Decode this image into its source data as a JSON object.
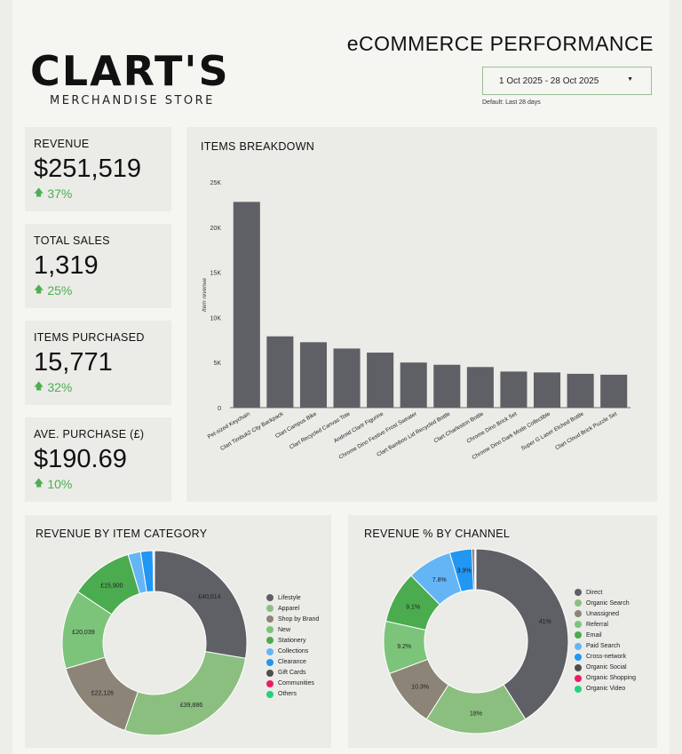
{
  "header": {
    "logo_main": "CLART'S",
    "logo_sub": "MERCHANDISE STORE",
    "title": "eCOMMERCE PERFORMANCE",
    "date_range": "1 Oct 2025 - 28 Oct 2025",
    "date_note": "Default: Last 28 days"
  },
  "kpis": [
    {
      "label": "REVENUE",
      "value": "$251,519",
      "delta": "37%"
    },
    {
      "label": "TOTAL SALES",
      "value": "1,319",
      "delta": "25%"
    },
    {
      "label": "ITEMS PURCHASED",
      "value": "15,771",
      "delta": "32%"
    },
    {
      "label": "AVE. PURCHASE (£)",
      "value": "$190.69",
      "delta": "10%"
    }
  ],
  "colors": {
    "bar": "#5f6065",
    "delta": "#4caf50"
  },
  "chart_data": [
    {
      "type": "bar",
      "title": "ITEMS BREAKDOWN",
      "ylabel": "Item revenue",
      "ylim": [
        0,
        25000
      ],
      "yticks": [
        {
          "value": 0,
          "label": "0"
        },
        {
          "value": 5000,
          "label": "5K"
        },
        {
          "value": 10000,
          "label": "10K"
        },
        {
          "value": 15000,
          "label": "15K"
        },
        {
          "value": 20000,
          "label": "20K"
        },
        {
          "value": 25000,
          "label": "25K"
        }
      ],
      "categories": [
        "Pet-sized Keychain",
        "Clart Timbuk2 City Backpack",
        "Clart Campus Bike",
        "Clart Recycled Canvas Tote",
        "Android Clartr Figurine",
        "Chrome Dino Festive Frost Sweater",
        "Clart Bamboo Lid Recycled Bottle",
        "Clart Charleston Bottle",
        "Chrome Dino Brick Set",
        "Chrome Dino Dark Mode Collectible",
        "Super G Laser Etched Bottle",
        "Clart Cloud Brick Puzzle Set"
      ],
      "values": [
        22800,
        7900,
        7250,
        6550,
        6100,
        5000,
        4750,
        4500,
        4000,
        3900,
        3750,
        3650
      ]
    },
    {
      "type": "pie",
      "title": "REVENUE BY ITEM CATEGORY",
      "categories": [
        "Lifestyle",
        "Apparel",
        "Shop by Brand",
        "New",
        "Stationery",
        "Collections",
        "Clearance",
        "Gift Cards",
        "Communities",
        "Others"
      ],
      "values": [
        40014,
        39886,
        22126,
        20039,
        15900,
        3200,
        3100,
        200,
        100,
        100
      ],
      "slice_labels": [
        "£40,014",
        "£39,886",
        "£22,126",
        "£20,039",
        "£15,900",
        "",
        "",
        "",
        "",
        ""
      ],
      "colors": [
        "#5f6065",
        "#8bbf7f",
        "#8c8476",
        "#7cc47a",
        "#4bab4f",
        "#64b5f6",
        "#2196f3",
        "#4e4e4e",
        "#e91e63",
        "#26d07c"
      ]
    },
    {
      "type": "pie",
      "title": "REVENUE % BY CHANNEL",
      "categories": [
        "Direct",
        "Organic Search",
        "Unassigned",
        "Referral",
        "Email",
        "Paid Search",
        "Cross-network",
        "Organic Social",
        "Organic Shopping",
        "Organic Video"
      ],
      "values": [
        41,
        18,
        10.3,
        9.2,
        9.1,
        7.8,
        3.9,
        0.4,
        0.2,
        0.1
      ],
      "slice_labels": [
        "41%",
        "18%",
        "10.3%",
        "9.2%",
        "9.1%",
        "7.8%",
        "3.9%",
        "",
        "",
        ""
      ],
      "colors": [
        "#5f6065",
        "#8bbf7f",
        "#8c8476",
        "#7cc47a",
        "#4bab4f",
        "#64b5f6",
        "#2196f3",
        "#4e4e4e",
        "#e91e63",
        "#26d07c"
      ]
    }
  ]
}
